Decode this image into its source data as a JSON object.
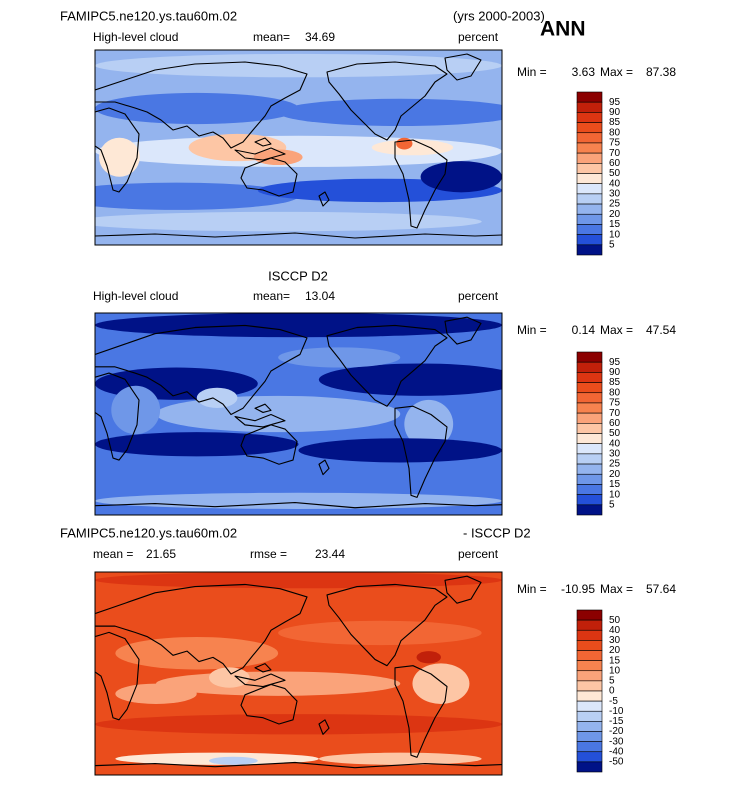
{
  "header": {
    "title": "FAMIPC5.ne120.ys.tau60m.02",
    "years": "(yrs 2000-2003)",
    "season": "ANN"
  },
  "panels": [
    {
      "variable": "High-level cloud",
      "mean_label": "mean=",
      "mean": 34.69,
      "units": "percent",
      "min_label": "Min =",
      "min": 3.63,
      "max_label": "Max =",
      "max": 87.38,
      "levels": [
        95,
        90,
        85,
        80,
        75,
        70,
        60,
        50,
        40,
        30,
        25,
        20,
        15,
        10,
        5
      ],
      "colors": [
        "#8b0000",
        "#c1200a",
        "#dc3512",
        "#ea4d1c",
        "#f26634",
        "#f7834f",
        "#faa37a",
        "#fdc6a5",
        "#fee8d6",
        "#dbe7fb",
        "#b8cff4",
        "#94b4ee",
        "#6f97e8",
        "#4a77e3",
        "#2450d9",
        "#001287"
      ]
    },
    {
      "title": "ISCCP D2",
      "variable": "High-level cloud",
      "mean_label": "mean=",
      "mean": 13.04,
      "units": "percent",
      "min_label": "Min =",
      "min": 0.14,
      "max_label": "Max =",
      "max": 47.54,
      "levels": [
        95,
        90,
        85,
        80,
        75,
        70,
        60,
        50,
        40,
        30,
        25,
        20,
        15,
        10,
        5
      ],
      "colors": [
        "#8b0000",
        "#c1200a",
        "#dc3512",
        "#ea4d1c",
        "#f26634",
        "#f7834f",
        "#faa37a",
        "#fdc6a5",
        "#fee8d6",
        "#dbe7fb",
        "#b8cff4",
        "#94b4ee",
        "#6f97e8",
        "#4a77e3",
        "#2450d9",
        "#001287"
      ]
    },
    {
      "title": "FAMIPC5.ne120.ys.tau60m.02",
      "title_right": "- ISCCP D2",
      "mean_label": "mean =",
      "mean": 21.65,
      "rmse_label": "rmse =",
      "rmse": 23.44,
      "units": "percent",
      "min_label": "Min =",
      "min": -10.95,
      "max_label": "Max =",
      "max": 57.64,
      "levels": [
        50,
        40,
        30,
        20,
        15,
        10,
        5,
        0,
        -5,
        -10,
        -15,
        -20,
        -30,
        -40,
        -50
      ],
      "colors": [
        "#8b0000",
        "#c1200a",
        "#dc3512",
        "#ea4d1c",
        "#f26634",
        "#f7834f",
        "#faa37a",
        "#fdc6a5",
        "#fee8d6",
        "#dbe7fb",
        "#b8cff4",
        "#94b4ee",
        "#6f97e8",
        "#4a77e3",
        "#2450d9",
        "#001287"
      ]
    }
  ]
}
